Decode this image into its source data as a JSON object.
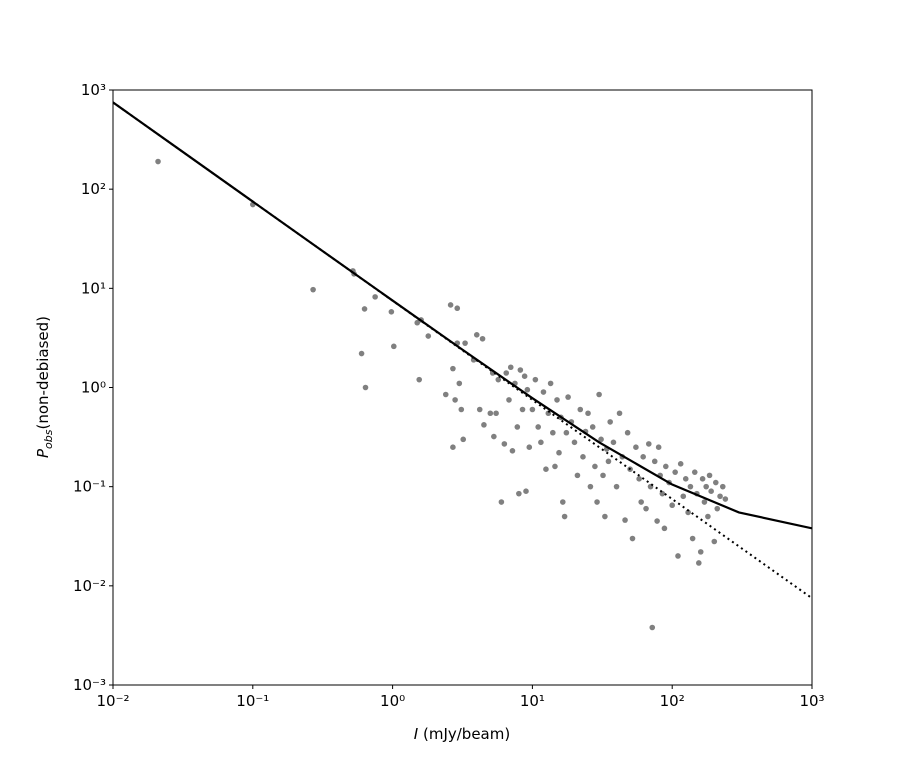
{
  "chart_data": {
    "type": "scatter",
    "xscale": "log",
    "yscale": "log",
    "xlabel": {
      "symbol": "I",
      "text": "(mJy/beam)"
    },
    "ylabel": {
      "symbol": "P",
      "subscript": "obs",
      "text": "(non-debiased)"
    },
    "xlim": [
      0.01,
      1000
    ],
    "ylim": [
      0.001,
      1000
    ],
    "xticks": [
      {
        "value": 0.01,
        "label": "10⁻²"
      },
      {
        "value": 0.1,
        "label": "10⁻¹"
      },
      {
        "value": 1,
        "label": "10⁰"
      },
      {
        "value": 10,
        "label": "10¹"
      },
      {
        "value": 100,
        "label": "10²"
      },
      {
        "value": 1000,
        "label": "10³"
      }
    ],
    "yticks": [
      {
        "value": 0.001,
        "label": "10⁻³"
      },
      {
        "value": 0.01,
        "label": "10⁻²"
      },
      {
        "value": 0.1,
        "label": "10⁻¹"
      },
      {
        "value": 1,
        "label": "10⁰"
      },
      {
        "value": 10,
        "label": "10¹"
      },
      {
        "value": 100,
        "label": "10²"
      },
      {
        "value": 1000,
        "label": "10³"
      }
    ],
    "points": {
      "color": "#808080",
      "x": [
        0.021,
        0.1,
        0.27,
        0.52,
        0.53,
        0.6,
        0.63,
        0.64,
        0.75,
        0.98,
        1.02,
        1.5,
        1.55,
        1.6,
        1.8,
        2.4,
        2.6,
        2.7,
        2.7,
        2.8,
        2.9,
        2.9,
        3.0,
        3.1,
        3.2,
        3.3,
        3.8,
        4.0,
        4.2,
        4.4,
        4.5,
        5.0,
        5.2,
        5.3,
        5.5,
        5.7,
        6.0,
        6.3,
        6.5,
        6.8,
        7.0,
        7.2,
        7.5,
        7.8,
        8.0,
        8.2,
        8.5,
        8.8,
        9.0,
        9.2,
        9.5,
        10,
        10.5,
        11,
        11.5,
        12,
        12.5,
        13,
        13.5,
        14,
        14.5,
        15,
        15.5,
        16,
        16.5,
        17,
        17.5,
        18,
        19,
        20,
        21,
        22,
        23,
        24,
        25,
        26,
        27,
        28,
        29,
        30,
        31,
        32,
        33,
        34,
        35,
        36,
        38,
        40,
        42,
        44,
        46,
        48,
        50,
        52,
        55,
        58,
        60,
        62,
        65,
        68,
        70,
        72,
        75,
        78,
        80,
        82,
        85,
        88,
        90,
        95,
        100,
        105,
        110,
        115,
        120,
        125,
        130,
        135,
        140,
        145,
        150,
        155,
        160,
        165,
        170,
        175,
        180,
        185,
        190,
        200,
        205,
        210,
        220,
        230,
        240
      ],
      "y": [
        190,
        70,
        9.7,
        15,
        14,
        2.2,
        6.2,
        1.0,
        8.2,
        5.8,
        2.6,
        4.5,
        1.2,
        4.8,
        3.3,
        0.85,
        6.8,
        1.55,
        0.25,
        0.75,
        6.3,
        2.8,
        1.1,
        0.6,
        0.3,
        2.8,
        1.9,
        3.4,
        0.6,
        3.1,
        0.42,
        0.55,
        1.4,
        0.32,
        0.55,
        1.2,
        0.07,
        0.27,
        1.4,
        0.75,
        1.6,
        0.23,
        1.1,
        0.4,
        0.085,
        1.5,
        0.6,
        1.3,
        0.09,
        0.95,
        0.25,
        0.6,
        1.2,
        0.4,
        0.28,
        0.9,
        0.15,
        0.55,
        1.1,
        0.35,
        0.16,
        0.75,
        0.22,
        0.5,
        0.07,
        0.05,
        0.35,
        0.8,
        0.45,
        0.28,
        0.13,
        0.6,
        0.2,
        0.36,
        0.55,
        0.1,
        0.4,
        0.16,
        0.07,
        0.85,
        0.3,
        0.13,
        0.05,
        0.24,
        0.18,
        0.45,
        0.28,
        0.1,
        0.55,
        0.2,
        0.046,
        0.35,
        0.15,
        0.03,
        0.25,
        0.12,
        0.07,
        0.2,
        0.06,
        0.27,
        0.1,
        0.0038,
        0.18,
        0.045,
        0.25,
        0.13,
        0.085,
        0.038,
        0.16,
        0.11,
        0.065,
        0.14,
        0.02,
        0.17,
        0.08,
        0.12,
        0.055,
        0.1,
        0.03,
        0.14,
        0.085,
        0.017,
        0.022,
        0.12,
        0.07,
        0.1,
        0.05,
        0.13,
        0.09,
        0.028,
        0.11,
        0.06,
        0.08,
        0.1,
        0.075
      ]
    },
    "lines": [
      {
        "color": "#000000",
        "style": "solid",
        "x": [
          0.01,
          0.03,
          0.1,
          0.3,
          1,
          3,
          10,
          30,
          100,
          300,
          1000
        ],
        "values": [
          750,
          250,
          75,
          25,
          7.53,
          2.53,
          0.78,
          0.28,
          0.105,
          0.055,
          0.038
        ]
      },
      {
        "color": "#000000",
        "style": "dotted",
        "x": [
          0.01,
          0.03,
          0.1,
          0.3,
          1,
          3,
          10,
          30,
          100,
          300,
          1000
        ],
        "values": [
          750,
          250,
          75,
          25,
          7.5,
          2.5,
          0.75,
          0.25,
          0.075,
          0.025,
          0.0075
        ]
      }
    ]
  }
}
